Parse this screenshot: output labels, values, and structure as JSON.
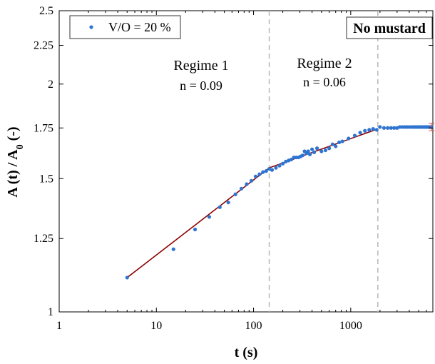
{
  "chart_data": {
    "type": "scatter",
    "x_scale": "log",
    "y_scale": "log",
    "xlim": [
      1,
      7000
    ],
    "ylim": [
      1,
      2.5
    ],
    "grid": false,
    "xlabel": "t (s)",
    "ylabel_main": "A (t) / A",
    "ylabel_sub": "0",
    "ylabel_tail": " (-)",
    "x_ticks": [
      {
        "value": 1,
        "label": "1"
      },
      {
        "value": 10,
        "label": "10"
      },
      {
        "value": 100,
        "label": "100"
      },
      {
        "value": 1000,
        "label": "1000"
      }
    ],
    "y_ticks": [
      {
        "value": 1,
        "label": "1"
      },
      {
        "value": 1.25,
        "label": "1.25"
      },
      {
        "value": 1.5,
        "label": "1.5"
      },
      {
        "value": 1.75,
        "label": "1.75"
      },
      {
        "value": 2,
        "label": "2"
      },
      {
        "value": 2.25,
        "label": "2.25"
      },
      {
        "value": 2.5,
        "label": "2.5"
      }
    ],
    "legend": {
      "label": "V/O = 20 %",
      "position": "top-left"
    },
    "series": [
      {
        "name": "V/O = 20 %",
        "color": "#2f74d0",
        "points": [
          [
            5,
            1.11
          ],
          [
            15,
            1.21
          ],
          [
            25,
            1.285
          ],
          [
            35,
            1.335
          ],
          [
            45,
            1.375
          ],
          [
            55,
            1.395
          ],
          [
            65,
            1.43
          ],
          [
            75,
            1.455
          ],
          [
            85,
            1.475
          ],
          [
            95,
            1.49
          ],
          [
            105,
            1.51
          ],
          [
            115,
            1.52
          ],
          [
            125,
            1.53
          ],
          [
            135,
            1.535
          ],
          [
            145,
            1.545
          ],
          [
            155,
            1.54
          ],
          [
            170,
            1.55
          ],
          [
            185,
            1.56
          ],
          [
            200,
            1.57
          ],
          [
            215,
            1.58
          ],
          [
            230,
            1.585
          ],
          [
            245,
            1.59
          ],
          [
            260,
            1.6
          ],
          [
            275,
            1.6
          ],
          [
            290,
            1.6
          ],
          [
            305,
            1.605
          ],
          [
            320,
            1.61
          ],
          [
            335,
            1.63
          ],
          [
            350,
            1.62
          ],
          [
            365,
            1.63
          ],
          [
            380,
            1.615
          ],
          [
            400,
            1.64
          ],
          [
            420,
            1.625
          ],
          [
            450,
            1.645
          ],
          [
            500,
            1.63
          ],
          [
            550,
            1.635
          ],
          [
            600,
            1.645
          ],
          [
            650,
            1.665
          ],
          [
            700,
            1.655
          ],
          [
            760,
            1.675
          ],
          [
            820,
            1.68
          ],
          [
            950,
            1.695
          ],
          [
            1100,
            1.71
          ],
          [
            1250,
            1.725
          ],
          [
            1400,
            1.735
          ],
          [
            1550,
            1.74
          ],
          [
            1700,
            1.745
          ],
          [
            1850,
            1.74
          ],
          [
            2000,
            1.755
          ],
          [
            2200,
            1.75
          ],
          [
            2400,
            1.75
          ],
          [
            2600,
            1.75
          ],
          [
            2800,
            1.75
          ],
          [
            3000,
            1.75
          ],
          [
            3200,
            1.755
          ],
          [
            3400,
            1.755
          ],
          [
            3600,
            1.755
          ],
          [
            3800,
            1.755
          ],
          [
            4000,
            1.755
          ],
          [
            4200,
            1.755
          ],
          [
            4400,
            1.755
          ],
          [
            4600,
            1.755
          ],
          [
            4800,
            1.755
          ],
          [
            5000,
            1.755
          ],
          [
            5200,
            1.755
          ],
          [
            5400,
            1.755
          ],
          [
            5600,
            1.755
          ],
          [
            5800,
            1.755
          ],
          [
            6000,
            1.755
          ],
          [
            6200,
            1.755
          ],
          [
            6400,
            1.755
          ],
          [
            6600,
            1.755
          ],
          [
            6800,
            1.755
          ]
        ]
      }
    ],
    "fit_lines": [
      {
        "x": [
          5,
          145
        ],
        "y": [
          1.11,
          1.55
        ],
        "color": "#8b0000"
      },
      {
        "x": [
          145,
          1900
        ],
        "y": [
          1.55,
          1.745
        ],
        "color": "#8b0000"
      }
    ],
    "error_bar": {
      "x": 6800,
      "y": 1.755,
      "low": 1.735,
      "high": 1.775,
      "color": "#d9534f"
    },
    "vlines": [
      145,
      1900
    ],
    "annotations": [
      {
        "id": "regime1",
        "title": "Regime 1",
        "n": "n = 0.09"
      },
      {
        "id": "regime2",
        "title": "Regime 2",
        "n": "n = 0.06"
      }
    ],
    "box_label": "No mustard"
  }
}
